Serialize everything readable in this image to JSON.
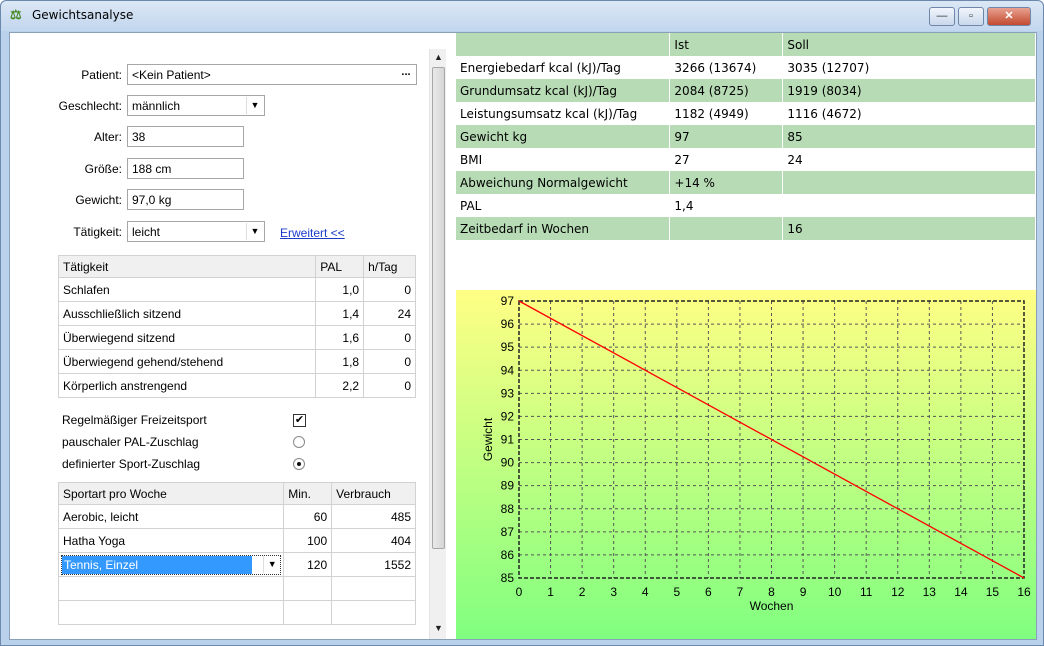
{
  "window": {
    "title": "Gewichtsanalyse",
    "minimize_glyph": "—",
    "maximize_glyph": "▫",
    "close_glyph": "✕"
  },
  "form": {
    "patient_label": "Patient:",
    "patient_value": "<Kein Patient>",
    "patient_button": "...",
    "gender_label": "Geschlecht:",
    "gender_value": "männlich",
    "age_label": "Alter:",
    "age_value": "38",
    "height_label": "Größe:",
    "height_value": "188 cm",
    "weight_label": "Gewicht:",
    "weight_value": "97,0 kg",
    "activity_label": "Tätigkeit:",
    "activity_value": "leicht",
    "advanced_link": "Erweitert <<"
  },
  "activity_table": {
    "headers": [
      "Tätigkeit",
      "PAL",
      "h/Tag"
    ],
    "rows": [
      [
        "Schlafen",
        "1,0",
        "0"
      ],
      [
        "Ausschließlich sitzend",
        "1,4",
        "24"
      ],
      [
        "Überwiegend sitzend",
        "1,6",
        "0"
      ],
      [
        "Überwiegend gehend/stehend",
        "1,8",
        "0"
      ],
      [
        "Körperlich anstrengend",
        "2,2",
        "0"
      ]
    ]
  },
  "sport_options": {
    "regular_sport_label": "Regelmäßiger Freizeitsport",
    "regular_sport_checked": true,
    "flat_pal_label": "pauschaler PAL-Zuschlag",
    "defined_sport_label": "definierter Sport-Zuschlag",
    "selected": "defined"
  },
  "sport_table": {
    "headers": [
      "Sportart pro Woche",
      "Min.",
      "Verbrauch"
    ],
    "rows": [
      [
        "Aerobic, leicht",
        "60",
        "485"
      ],
      [
        "Hatha Yoga",
        "100",
        "404"
      ],
      [
        "Tennis, Einzel",
        "120",
        "1552"
      ]
    ]
  },
  "results": {
    "headers": [
      "",
      "Ist",
      "Soll"
    ],
    "rows": [
      [
        "Energiebedarf kcal (kJ)/Tag",
        "3266 (13674)",
        "3035 (12707)"
      ],
      [
        "Grundumsatz kcal (kJ)/Tag",
        "2084 (8725)",
        "1919 (8034)"
      ],
      [
        "Leistungsumsatz kcal (kJ)/Tag",
        "1182 (4949)",
        "1116 (4672)"
      ],
      [
        "Gewicht kg",
        "97",
        "85"
      ],
      [
        "BMI",
        "27",
        "24"
      ],
      [
        "Abweichung Normalgewicht",
        "+14 %",
        ""
      ],
      [
        "PAL",
        "1,4",
        ""
      ],
      [
        "Zeitbedarf in Wochen",
        "",
        "16"
      ]
    ]
  },
  "colors": {
    "row_green": "#b7dcb5",
    "row_white": "#ffffff",
    "chart_top": "#ffff84",
    "chart_bottom": "#80ff80",
    "line": "#ff0000"
  },
  "chart_data": {
    "type": "line",
    "xlabel": "Wochen",
    "ylabel": "Gewicht",
    "xlim": [
      0,
      16
    ],
    "ylim": [
      85,
      97
    ],
    "x_ticks": [
      0,
      1,
      2,
      3,
      4,
      5,
      6,
      7,
      8,
      9,
      10,
      11,
      12,
      13,
      14,
      15,
      16
    ],
    "y_ticks": [
      85,
      86,
      87,
      88,
      89,
      90,
      91,
      92,
      93,
      94,
      95,
      96,
      97
    ],
    "grid": true,
    "series": [
      {
        "x": [
          0,
          16
        ],
        "y": [
          97,
          85
        ]
      }
    ]
  }
}
